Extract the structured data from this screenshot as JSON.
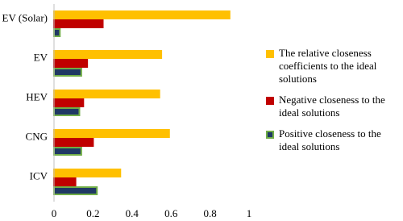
{
  "chart_data": {
    "type": "hbar",
    "categories": [
      "EV (Solar)",
      "EV",
      "HEV",
      "CNG",
      "ICV"
    ],
    "series": [
      {
        "name": "The relative closeness coefficients to the ideal solutions",
        "color": "#FFC000",
        "border": "#FFC000",
        "values": [
          0.9,
          0.55,
          0.54,
          0.59,
          0.34
        ]
      },
      {
        "name": "Negative closeness to the ideal solutions",
        "color": "#C00000",
        "border": "#C00000",
        "values": [
          0.25,
          0.17,
          0.15,
          0.2,
          0.11
        ]
      },
      {
        "name": "Positive closeness to the ideal solutions",
        "color": "#1F3864",
        "border": "#70AD47",
        "values": [
          0.03,
          0.14,
          0.13,
          0.14,
          0.22
        ]
      }
    ],
    "xlim": [
      0,
      1
    ],
    "xticks": [
      0,
      0.2,
      0.4,
      0.6,
      0.8,
      1
    ]
  }
}
